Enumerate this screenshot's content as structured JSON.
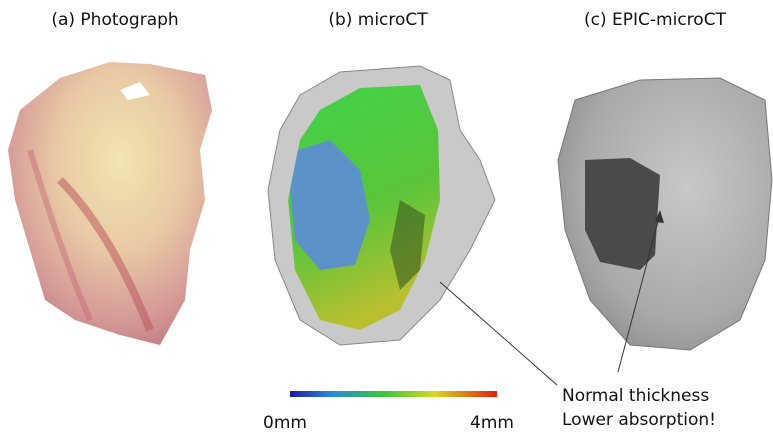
{
  "panels": [
    {
      "label": "(a) Photograph"
    },
    {
      "label": "(b) microCT"
    },
    {
      "label": "(c) EPIC-microCT"
    }
  ],
  "colorbar": {
    "min_label": "0mm",
    "max_label": "4mm"
  },
  "annotation": {
    "lines": [
      "Normal thickness",
      "Lower absorption!"
    ]
  }
}
